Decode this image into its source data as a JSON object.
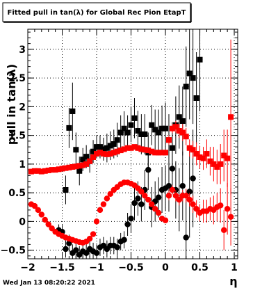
{
  "chart_data": {
    "type": "scatter",
    "title": "Fitted pull in tan(λ) for Global Rec Pion EtapT",
    "xlabel": "η",
    "ylabel": "pull in tan(λ)",
    "xlim": [
      -2,
      1.05
    ],
    "ylim": [
      -0.65,
      3.35
    ],
    "xticks": [
      "−2",
      "−1.5",
      "−1",
      "−0.5",
      "0",
      "0.5",
      "1"
    ],
    "xtick_values": [
      -2,
      -1.5,
      -1,
      -0.5,
      0,
      0.5,
      1
    ],
    "yticks": [
      "−0.5",
      "0",
      "0.5",
      "1",
      "1.5",
      "2",
      "2.5",
      "3"
    ],
    "ytick_values": [
      -0.5,
      0,
      0.5,
      1,
      1.5,
      2,
      2.5,
      3
    ],
    "grid": true,
    "footer": "Wed Jan 13 08:20:22 2021",
    "series": [
      {
        "color": "#000000",
        "marker": "square",
        "points": [
          {
            "x": -1.45,
            "y": 0.55,
            "err": 0.25
          },
          {
            "x": -1.4,
            "y": 1.63,
            "err": 0.35
          },
          {
            "x": -1.35,
            "y": 1.92,
            "err": 0.5
          },
          {
            "x": -1.3,
            "y": 1.25,
            "err": 0.3
          },
          {
            "x": -1.25,
            "y": 0.88,
            "err": 0.25
          },
          {
            "x": -1.2,
            "y": 1.08,
            "err": 0.2
          },
          {
            "x": -1.15,
            "y": 1.13,
            "err": 0.2
          },
          {
            "x": -1.1,
            "y": 1.05,
            "err": 0.2
          },
          {
            "x": -1.05,
            "y": 1.22,
            "err": 0.2
          },
          {
            "x": -1.0,
            "y": 1.3,
            "err": 0.2
          },
          {
            "x": -0.95,
            "y": 1.3,
            "err": 0.2
          },
          {
            "x": -0.9,
            "y": 1.26,
            "err": 0.2
          },
          {
            "x": -0.85,
            "y": 1.28,
            "err": 0.25
          },
          {
            "x": -0.8,
            "y": 1.32,
            "err": 0.25
          },
          {
            "x": -0.75,
            "y": 1.35,
            "err": 0.25
          },
          {
            "x": -0.7,
            "y": 1.42,
            "err": 0.3
          },
          {
            "x": -0.65,
            "y": 1.55,
            "err": 0.3
          },
          {
            "x": -0.6,
            "y": 1.62,
            "err": 0.3
          },
          {
            "x": -0.55,
            "y": 1.55,
            "err": 0.3
          },
          {
            "x": -0.5,
            "y": 1.68,
            "err": 0.3
          },
          {
            "x": -0.45,
            "y": 1.8,
            "err": 0.35
          },
          {
            "x": -0.4,
            "y": 1.58,
            "err": 0.35
          },
          {
            "x": -0.35,
            "y": 1.52,
            "err": 0.35
          },
          {
            "x": -0.3,
            "y": 1.52,
            "err": 0.35
          },
          {
            "x": -0.25,
            "y": 1.2,
            "err": 0.35
          },
          {
            "x": -0.2,
            "y": 1.68,
            "err": 0.35
          },
          {
            "x": -0.15,
            "y": 1.6,
            "err": 0.35
          },
          {
            "x": -0.1,
            "y": 1.55,
            "err": 0.4
          },
          {
            "x": -0.05,
            "y": 1.62,
            "err": 0.4
          },
          {
            "x": 0.0,
            "y": 1.62,
            "err": 0.45
          },
          {
            "x": 0.05,
            "y": 1.42,
            "err": 0.45
          },
          {
            "x": 0.1,
            "y": 1.28,
            "err": 0.45
          },
          {
            "x": 0.15,
            "y": 1.68,
            "err": 0.5
          },
          {
            "x": 0.2,
            "y": 1.82,
            "err": 0.55
          },
          {
            "x": 0.25,
            "y": 1.75,
            "err": 0.6
          },
          {
            "x": 0.3,
            "y": 2.35,
            "err": 0.7
          },
          {
            "x": 0.35,
            "y": 2.58,
            "err": 0.8
          },
          {
            "x": 0.4,
            "y": 2.5,
            "err": 0.8
          },
          {
            "x": 0.45,
            "y": 2.15,
            "err": 0.8
          },
          {
            "x": 0.5,
            "y": 2.82,
            "err": 0.9
          }
        ]
      },
      {
        "color": "#000000",
        "marker": "circle",
        "points": [
          {
            "x": -1.55,
            "y": -0.15,
            "err": 0.1
          },
          {
            "x": -1.5,
            "y": -0.18,
            "err": 0.12
          },
          {
            "x": -1.45,
            "y": -0.48,
            "err": 0.15
          },
          {
            "x": -1.4,
            "y": -0.38,
            "err": 0.15
          },
          {
            "x": -1.35,
            "y": -0.55,
            "err": 0.15
          },
          {
            "x": -1.3,
            "y": -0.5,
            "err": 0.15
          },
          {
            "x": -1.25,
            "y": -0.58,
            "err": 0.15
          },
          {
            "x": -1.2,
            "y": -0.52,
            "err": 0.15
          },
          {
            "x": -1.15,
            "y": -0.55,
            "err": 0.15
          },
          {
            "x": -1.1,
            "y": -0.48,
            "err": 0.15
          },
          {
            "x": -1.05,
            "y": -0.52,
            "err": 0.15
          },
          {
            "x": -1.0,
            "y": -0.55,
            "err": 0.15
          },
          {
            "x": -0.95,
            "y": -0.45,
            "err": 0.15
          },
          {
            "x": -0.9,
            "y": -0.42,
            "err": 0.15
          },
          {
            "x": -0.85,
            "y": -0.48,
            "err": 0.15
          },
          {
            "x": -0.8,
            "y": -0.42,
            "err": 0.15
          },
          {
            "x": -0.75,
            "y": -0.42,
            "err": 0.15
          },
          {
            "x": -0.7,
            "y": -0.45,
            "err": 0.15
          },
          {
            "x": -0.65,
            "y": -0.35,
            "err": 0.15
          },
          {
            "x": -0.6,
            "y": -0.32,
            "err": 0.15
          },
          {
            "x": -0.55,
            "y": -0.05,
            "err": 0.2
          },
          {
            "x": -0.5,
            "y": 0.05,
            "err": 0.25
          },
          {
            "x": -0.45,
            "y": 0.32,
            "err": 0.3
          },
          {
            "x": -0.4,
            "y": 0.4,
            "err": 0.3
          },
          {
            "x": -0.35,
            "y": 0.3,
            "err": 0.3
          },
          {
            "x": -0.3,
            "y": 0.55,
            "err": 0.35
          },
          {
            "x": -0.25,
            "y": 0.9,
            "err": 0.35
          },
          {
            "x": -0.2,
            "y": 0.25,
            "err": 0.35
          },
          {
            "x": -0.15,
            "y": 0.35,
            "err": 0.35
          },
          {
            "x": -0.1,
            "y": 0.42,
            "err": 0.35
          },
          {
            "x": -0.05,
            "y": 0.55,
            "err": 0.4
          },
          {
            "x": 0.0,
            "y": 0.58,
            "err": 0.4
          },
          {
            "x": 0.05,
            "y": 0.62,
            "err": 0.45
          },
          {
            "x": 0.1,
            "y": 0.92,
            "err": 0.45
          },
          {
            "x": 0.15,
            "y": 0.55,
            "err": 0.5
          },
          {
            "x": 0.2,
            "y": 0.38,
            "err": 0.55
          },
          {
            "x": 0.25,
            "y": 0.62,
            "err": 0.6
          },
          {
            "x": 0.3,
            "y": -0.28,
            "err": 0.7
          },
          {
            "x": 0.35,
            "y": 0.52,
            "err": 0.8
          },
          {
            "x": 0.4,
            "y": 0.75,
            "err": 0.85
          }
        ]
      },
      {
        "color": "#ff0000",
        "marker": "square",
        "points": [
          {
            "x": -1.95,
            "y": 0.87,
            "err": 0.03
          },
          {
            "x": -1.9,
            "y": 0.88,
            "err": 0.03
          },
          {
            "x": -1.85,
            "y": 0.88,
            "err": 0.03
          },
          {
            "x": -1.8,
            "y": 0.87,
            "err": 0.03
          },
          {
            "x": -1.75,
            "y": 0.88,
            "err": 0.03
          },
          {
            "x": -1.7,
            "y": 0.89,
            "err": 0.03
          },
          {
            "x": -1.65,
            "y": 0.9,
            "err": 0.03
          },
          {
            "x": -1.6,
            "y": 0.9,
            "err": 0.03
          },
          {
            "x": -1.55,
            "y": 0.91,
            "err": 0.03
          },
          {
            "x": -1.5,
            "y": 0.92,
            "err": 0.03
          },
          {
            "x": -1.45,
            "y": 0.93,
            "err": 0.03
          },
          {
            "x": -1.4,
            "y": 0.94,
            "err": 0.03
          },
          {
            "x": -1.35,
            "y": 0.95,
            "err": 0.03
          },
          {
            "x": -1.3,
            "y": 0.96,
            "err": 0.03
          },
          {
            "x": -1.25,
            "y": 0.97,
            "err": 0.03
          },
          {
            "x": -1.2,
            "y": 0.98,
            "err": 0.03
          },
          {
            "x": -1.15,
            "y": 1.0,
            "err": 0.03
          },
          {
            "x": -1.1,
            "y": 1.05,
            "err": 0.03
          },
          {
            "x": -1.05,
            "y": 1.12,
            "err": 0.03
          },
          {
            "x": -1.0,
            "y": 1.18,
            "err": 0.03
          },
          {
            "x": -0.95,
            "y": 1.2,
            "err": 0.03
          },
          {
            "x": -0.9,
            "y": 1.18,
            "err": 0.03
          },
          {
            "x": -0.85,
            "y": 1.17,
            "err": 0.03
          },
          {
            "x": -0.8,
            "y": 1.18,
            "err": 0.03
          },
          {
            "x": -0.75,
            "y": 1.2,
            "err": 0.03
          },
          {
            "x": -0.7,
            "y": 1.22,
            "err": 0.03
          },
          {
            "x": -0.65,
            "y": 1.24,
            "err": 0.03
          },
          {
            "x": -0.6,
            "y": 1.26,
            "err": 0.03
          },
          {
            "x": -0.55,
            "y": 1.28,
            "err": 0.03
          },
          {
            "x": -0.5,
            "y": 1.28,
            "err": 0.03
          },
          {
            "x": -0.45,
            "y": 1.3,
            "err": 0.03
          },
          {
            "x": -0.4,
            "y": 1.28,
            "err": 0.03
          },
          {
            "x": -0.35,
            "y": 1.26,
            "err": 0.03
          },
          {
            "x": -0.3,
            "y": 1.25,
            "err": 0.03
          },
          {
            "x": -0.25,
            "y": 1.24,
            "err": 0.03
          },
          {
            "x": -0.2,
            "y": 1.22,
            "err": 0.03
          },
          {
            "x": -0.15,
            "y": 1.2,
            "err": 0.03
          },
          {
            "x": -0.1,
            "y": 1.2,
            "err": 0.03
          },
          {
            "x": -0.05,
            "y": 1.2,
            "err": 0.04
          },
          {
            "x": 0.0,
            "y": 1.2,
            "err": 0.05
          },
          {
            "x": 0.05,
            "y": 1.42,
            "err": 0.08
          },
          {
            "x": 0.1,
            "y": 1.62,
            "err": 0.08
          },
          {
            "x": 0.15,
            "y": 1.65,
            "err": 0.1
          },
          {
            "x": 0.2,
            "y": 1.58,
            "err": 0.12
          },
          {
            "x": 0.25,
            "y": 1.55,
            "err": 0.15
          },
          {
            "x": 0.3,
            "y": 1.48,
            "err": 0.15
          },
          {
            "x": 0.35,
            "y": 1.28,
            "err": 0.15
          },
          {
            "x": 0.4,
            "y": 1.25,
            "err": 0.15
          },
          {
            "x": 0.45,
            "y": 1.18,
            "err": 0.2
          },
          {
            "x": 0.5,
            "y": 1.12,
            "err": 0.2
          },
          {
            "x": 0.55,
            "y": 1.1,
            "err": 0.2
          },
          {
            "x": 0.6,
            "y": 1.18,
            "err": 0.25
          },
          {
            "x": 0.65,
            "y": 1.05,
            "err": 0.25
          },
          {
            "x": 0.7,
            "y": 1.0,
            "err": 0.3
          },
          {
            "x": 0.75,
            "y": 0.95,
            "err": 0.3
          },
          {
            "x": 0.8,
            "y": 1.0,
            "err": 0.35
          },
          {
            "x": 0.85,
            "y": 1.15,
            "err": 0.45
          },
          {
            "x": 0.9,
            "y": 1.1,
            "err": 0.5
          },
          {
            "x": 0.95,
            "y": 1.82,
            "err": 1.35
          }
        ]
      },
      {
        "color": "#ff0000",
        "marker": "circle",
        "points": [
          {
            "x": -1.95,
            "y": 0.3,
            "err": 0.03
          },
          {
            "x": -1.9,
            "y": 0.27,
            "err": 0.03
          },
          {
            "x": -1.85,
            "y": 0.2,
            "err": 0.03
          },
          {
            "x": -1.8,
            "y": 0.12,
            "err": 0.03
          },
          {
            "x": -1.75,
            "y": 0.03,
            "err": 0.03
          },
          {
            "x": -1.7,
            "y": -0.05,
            "err": 0.03
          },
          {
            "x": -1.65,
            "y": -0.12,
            "err": 0.03
          },
          {
            "x": -1.6,
            "y": -0.18,
            "err": 0.03
          },
          {
            "x": -1.55,
            "y": -0.22,
            "err": 0.03
          },
          {
            "x": -1.5,
            "y": -0.25,
            "err": 0.03
          },
          {
            "x": -1.45,
            "y": -0.28,
            "err": 0.03
          },
          {
            "x": -1.4,
            "y": -0.3,
            "err": 0.03
          },
          {
            "x": -1.35,
            "y": -0.32,
            "err": 0.03
          },
          {
            "x": -1.3,
            "y": -0.34,
            "err": 0.03
          },
          {
            "x": -1.25,
            "y": -0.36,
            "err": 0.03
          },
          {
            "x": -1.2,
            "y": -0.37,
            "err": 0.03
          },
          {
            "x": -1.15,
            "y": -0.35,
            "err": 0.03
          },
          {
            "x": -1.1,
            "y": -0.3,
            "err": 0.03
          },
          {
            "x": -1.05,
            "y": -0.22,
            "err": 0.03
          },
          {
            "x": -1.0,
            "y": 0.0,
            "err": 0.03
          },
          {
            "x": -0.95,
            "y": 0.2,
            "err": 0.03
          },
          {
            "x": -0.9,
            "y": 0.3,
            "err": 0.03
          },
          {
            "x": -0.85,
            "y": 0.4,
            "err": 0.03
          },
          {
            "x": -0.8,
            "y": 0.48,
            "err": 0.03
          },
          {
            "x": -0.75,
            "y": 0.55,
            "err": 0.03
          },
          {
            "x": -0.7,
            "y": 0.6,
            "err": 0.03
          },
          {
            "x": -0.65,
            "y": 0.65,
            "err": 0.03
          },
          {
            "x": -0.6,
            "y": 0.68,
            "err": 0.03
          },
          {
            "x": -0.55,
            "y": 0.68,
            "err": 0.03
          },
          {
            "x": -0.5,
            "y": 0.66,
            "err": 0.03
          },
          {
            "x": -0.45,
            "y": 0.63,
            "err": 0.03
          },
          {
            "x": -0.4,
            "y": 0.58,
            "err": 0.03
          },
          {
            "x": -0.35,
            "y": 0.52,
            "err": 0.03
          },
          {
            "x": -0.3,
            "y": 0.45,
            "err": 0.03
          },
          {
            "x": -0.25,
            "y": 0.38,
            "err": 0.03
          },
          {
            "x": -0.2,
            "y": 0.3,
            "err": 0.03
          },
          {
            "x": -0.15,
            "y": 0.22,
            "err": 0.03
          },
          {
            "x": -0.1,
            "y": 0.15,
            "err": 0.03
          },
          {
            "x": -0.05,
            "y": 0.05,
            "err": 0.04
          },
          {
            "x": 0.0,
            "y": 0.02,
            "err": 0.05
          },
          {
            "x": 0.05,
            "y": 0.45,
            "err": 0.08
          },
          {
            "x": 0.1,
            "y": 0.55,
            "err": 0.08
          },
          {
            "x": 0.15,
            "y": 0.45,
            "err": 0.1
          },
          {
            "x": 0.2,
            "y": 0.38,
            "err": 0.1
          },
          {
            "x": 0.25,
            "y": 0.45,
            "err": 0.1
          },
          {
            "x": 0.3,
            "y": 0.45,
            "err": 0.12
          },
          {
            "x": 0.35,
            "y": 0.38,
            "err": 0.12
          },
          {
            "x": 0.4,
            "y": 0.3,
            "err": 0.15
          },
          {
            "x": 0.45,
            "y": 0.22,
            "err": 0.15
          },
          {
            "x": 0.5,
            "y": 0.15,
            "err": 0.15
          },
          {
            "x": 0.55,
            "y": 0.18,
            "err": 0.2
          },
          {
            "x": 0.6,
            "y": 0.18,
            "err": 0.2
          },
          {
            "x": 0.65,
            "y": 0.22,
            "err": 0.2
          },
          {
            "x": 0.7,
            "y": 0.2,
            "err": 0.25
          },
          {
            "x": 0.75,
            "y": 0.25,
            "err": 0.25
          },
          {
            "x": 0.8,
            "y": 0.28,
            "err": 0.3
          },
          {
            "x": 0.85,
            "y": -0.15,
            "err": 0.35
          },
          {
            "x": 0.9,
            "y": 0.22,
            "err": 0.45
          },
          {
            "x": 0.95,
            "y": 0.08,
            "err": 0.5
          }
        ]
      }
    ]
  }
}
